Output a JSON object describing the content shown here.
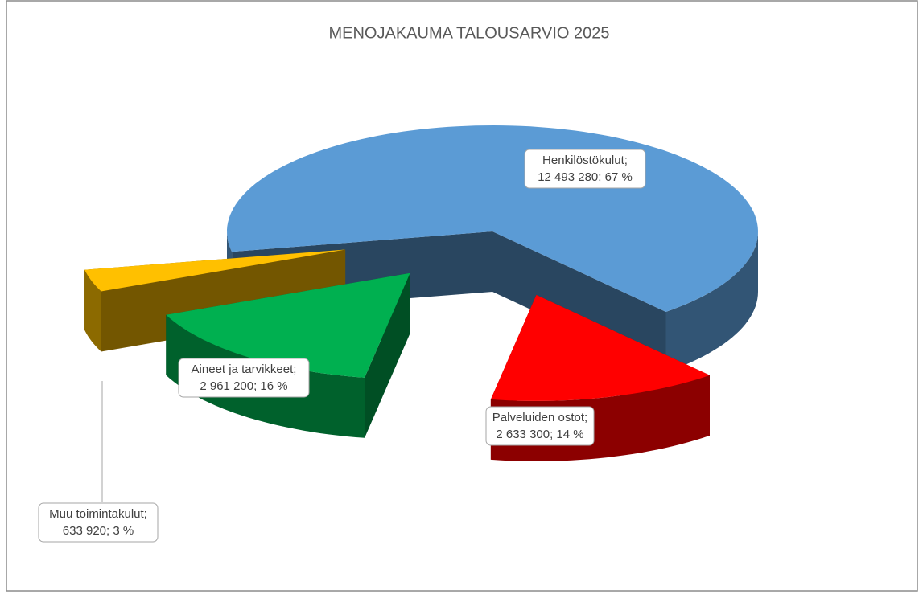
{
  "chart_data": {
    "type": "pie",
    "title": "MENOJAKAUMA TALOUSARVIO 2025",
    "categories": [
      "Henkilöstökulut;",
      "Palveluiden ostot;",
      "Aineet ja tarvikkeet;",
      "Muu toimintakulut;"
    ],
    "values": [
      12493280,
      2633300,
      2961200,
      633920
    ],
    "value_labels": [
      "12 493 280; 67 %",
      "2 633 300; 14 %",
      "2 961 200; 16 %",
      "633 920; 3 %"
    ],
    "colors": [
      "#5b9bd5",
      "#ff0000",
      "#00b050",
      "#ffc000"
    ]
  }
}
